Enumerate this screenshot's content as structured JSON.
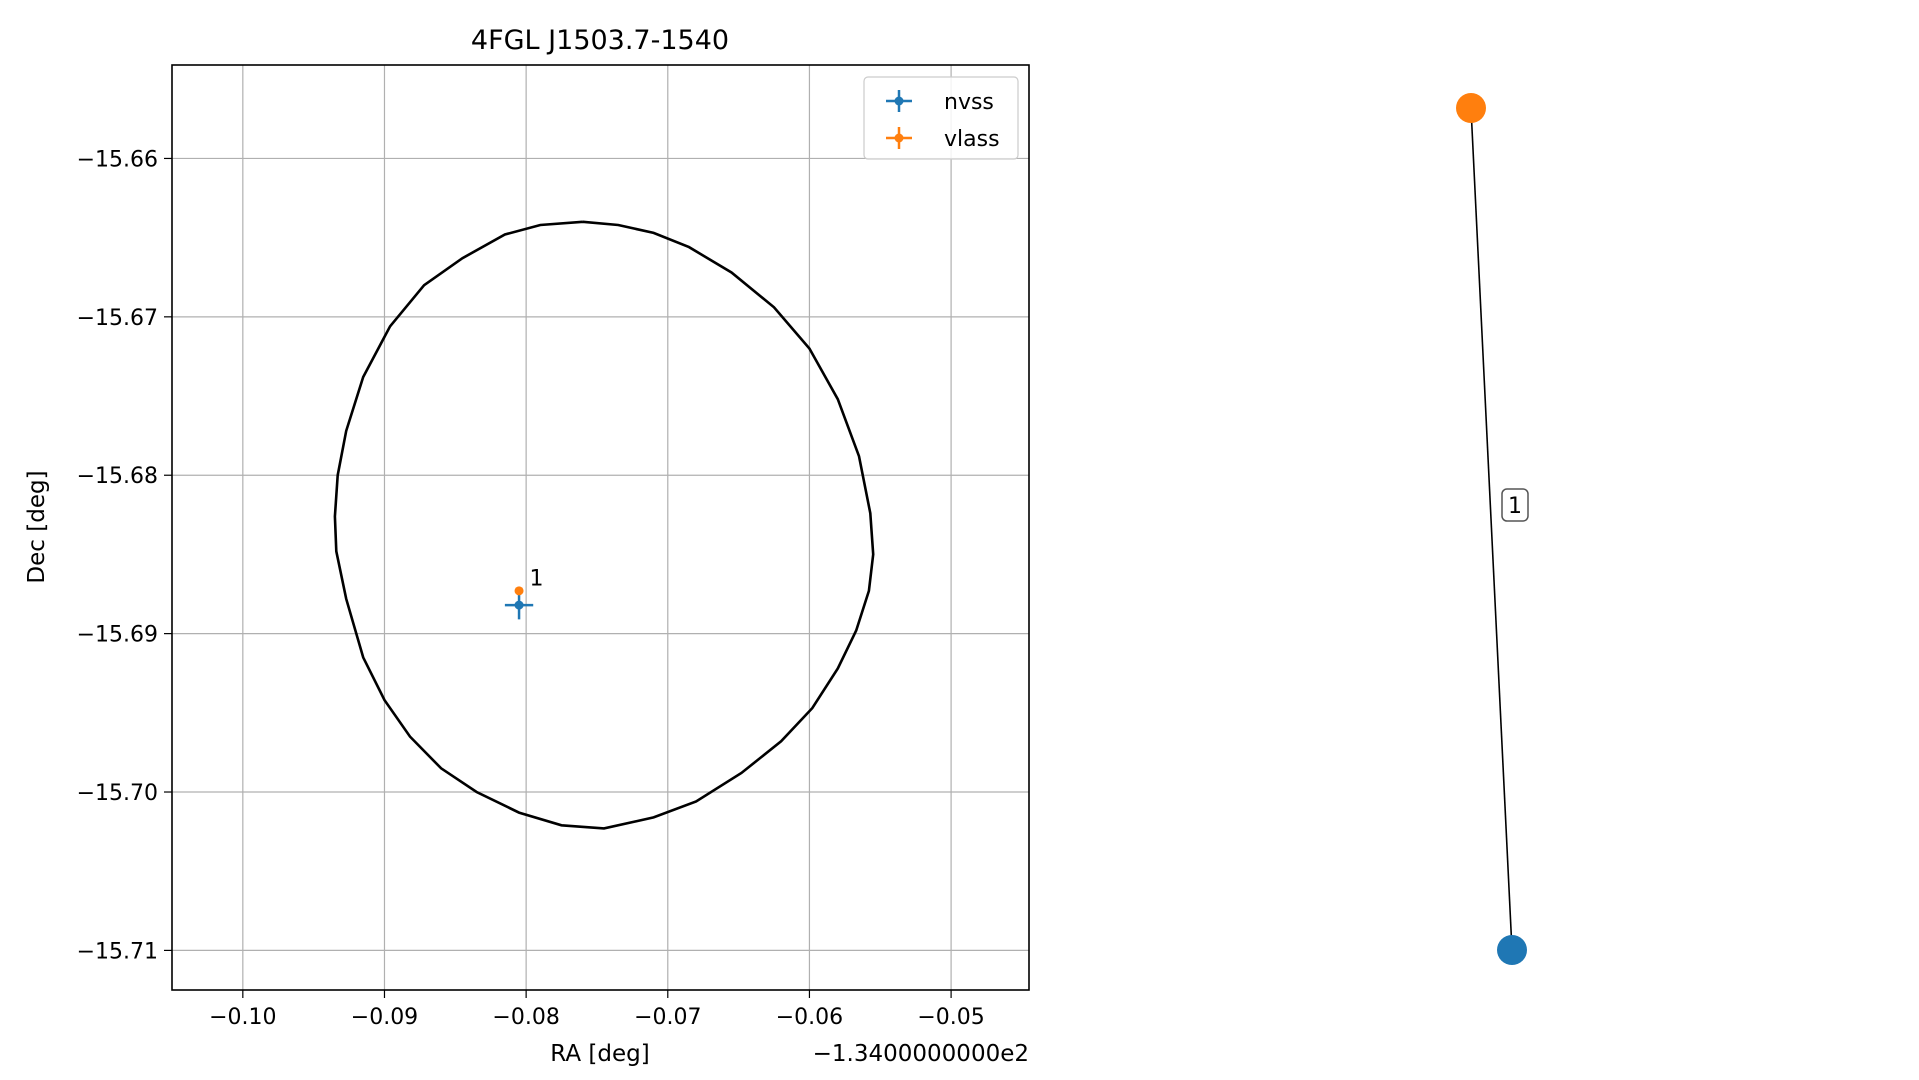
{
  "chart_data": [
    {
      "type": "scatter",
      "title": "4FGL J1503.7-1540",
      "xlabel": "RA [deg]",
      "ylabel": "Dec [deg]",
      "x_offset_label": "−1.3400000000e2",
      "xlim": [
        -0.105,
        -0.0445
      ],
      "ylim": [
        -15.7125,
        -15.6541
      ],
      "xticks": [
        -0.1,
        -0.09,
        -0.08,
        -0.07,
        -0.06,
        -0.05
      ],
      "xtick_labels": [
        "−0.10",
        "−0.09",
        "−0.08",
        "−0.07",
        "−0.06",
        "−0.05"
      ],
      "yticks": [
        -15.66,
        -15.67,
        -15.68,
        -15.69,
        -15.7,
        -15.71
      ],
      "ytick_labels": [
        "−15.66",
        "−15.67",
        "−15.68",
        "−15.69",
        "−15.70",
        "−15.71"
      ],
      "grid": true,
      "legend_position": "top-right",
      "series": [
        {
          "name": "nvss",
          "color": "#1f77b4",
          "points": [
            {
              "x": -0.0805,
              "y": -15.6882,
              "xerr": 0.001,
              "yerr": 0.0009
            }
          ]
        },
        {
          "name": "vlass",
          "color": "#ff7f0e",
          "points": [
            {
              "x": -0.0805,
              "y": -15.6873,
              "xerr": 0.0,
              "yerr": 0.0
            }
          ]
        }
      ],
      "annotations": [
        {
          "text": "1",
          "x": -0.0799,
          "y": -15.6869
        }
      ],
      "ellipse": {
        "color": "#000000",
        "points": [
          [
            -0.076,
            -15.664
          ],
          [
            -0.0735,
            -15.6642
          ],
          [
            -0.071,
            -15.6647
          ],
          [
            -0.0685,
            -15.6656
          ],
          [
            -0.0655,
            -15.6672
          ],
          [
            -0.0625,
            -15.6694
          ],
          [
            -0.06,
            -15.672
          ],
          [
            -0.058,
            -15.6752
          ],
          [
            -0.0565,
            -15.6788
          ],
          [
            -0.0557,
            -15.6824
          ],
          [
            -0.0555,
            -15.685
          ],
          [
            -0.0558,
            -15.6873
          ],
          [
            -0.0567,
            -15.6898
          ],
          [
            -0.058,
            -15.6922
          ],
          [
            -0.0598,
            -15.6947
          ],
          [
            -0.062,
            -15.6968
          ],
          [
            -0.0648,
            -15.6988
          ],
          [
            -0.068,
            -15.7006
          ],
          [
            -0.071,
            -15.7016
          ],
          [
            -0.0745,
            -15.7023
          ],
          [
            -0.0775,
            -15.7021
          ],
          [
            -0.0805,
            -15.7013
          ],
          [
            -0.0835,
            -15.7
          ],
          [
            -0.086,
            -15.6985
          ],
          [
            -0.0882,
            -15.6965
          ],
          [
            -0.09,
            -15.6942
          ],
          [
            -0.0915,
            -15.6915
          ],
          [
            -0.0927,
            -15.6878
          ],
          [
            -0.0934,
            -15.6848
          ],
          [
            -0.0935,
            -15.6826
          ],
          [
            -0.0933,
            -15.68
          ],
          [
            -0.0927,
            -15.6772
          ],
          [
            -0.0915,
            -15.6738
          ],
          [
            -0.0896,
            -15.6706
          ],
          [
            -0.0872,
            -15.668
          ],
          [
            -0.0845,
            -15.6663
          ],
          [
            -0.0815,
            -15.6648
          ],
          [
            -0.079,
            -15.6642
          ],
          [
            -0.076,
            -15.664
          ]
        ]
      }
    },
    {
      "type": "graph",
      "nodes": [
        {
          "id": "vlass",
          "color": "#ff7f0e"
        },
        {
          "id": "nvss",
          "color": "#1f77b4"
        }
      ],
      "edges": [
        {
          "source": "vlass",
          "target": "nvss",
          "label": "1"
        }
      ]
    }
  ]
}
